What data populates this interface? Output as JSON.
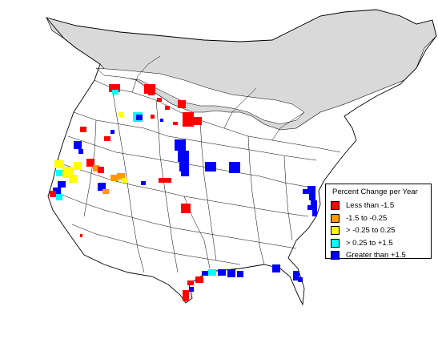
{
  "map": {
    "colors": {
      "background": "#ffffff",
      "land": "#ffffff",
      "no_data": "#d9d9d9",
      "boundary": "#000000"
    }
  },
  "legend": {
    "title": "Percent Change per Year",
    "items": [
      {
        "label": "Less than -1.5",
        "color": "#ff0000"
      },
      {
        "label": "-1.5 to -0.25",
        "color": "#ff9900"
      },
      {
        "label": "> -0.25 to 0.25",
        "color": "#ffff00"
      },
      {
        "label": "> 0.25 to +1.5",
        "color": "#00ffff"
      },
      {
        "label": "Greater than +1.5",
        "color": "#0000ff"
      }
    ]
  }
}
